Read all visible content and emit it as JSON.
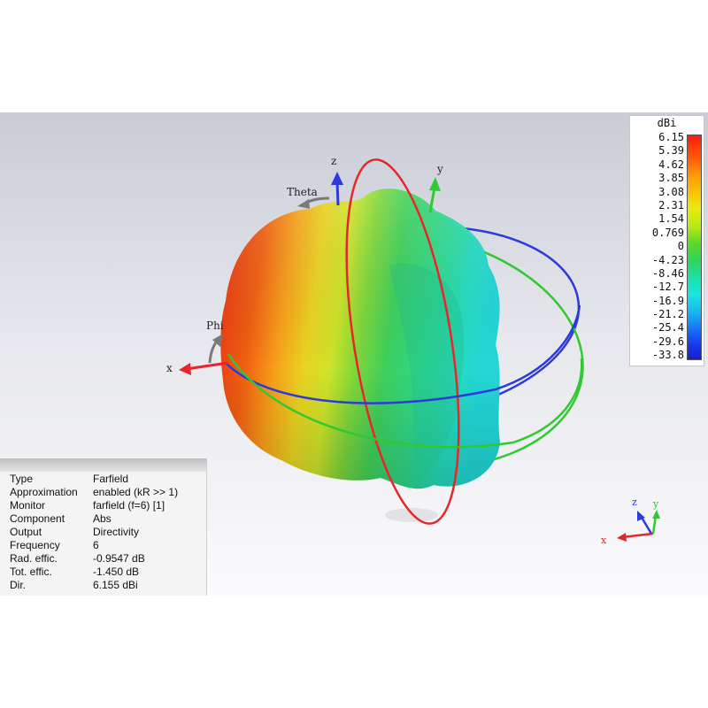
{
  "legend": {
    "unit": "dBi",
    "ticks": [
      "6.15",
      "5.39",
      "4.62",
      "3.85",
      "3.08",
      "2.31",
      "1.54",
      "0.769",
      "0",
      "-4.23",
      "-8.46",
      "-12.7",
      "-16.9",
      "-21.2",
      "-25.4",
      "-29.6",
      "-33.8"
    ]
  },
  "axes": {
    "x": "x",
    "y": "y",
    "z": "z",
    "theta": "Theta",
    "phi": "Phi"
  },
  "mini_axes": {
    "x": "x",
    "y": "y",
    "z": "z"
  },
  "info": {
    "rows": [
      {
        "key": "Type",
        "value": "Farfield"
      },
      {
        "key": "Approximation",
        "value": "enabled (kR >> 1)"
      },
      {
        "key": "Monitor",
        "value": "farfield (f=6) [1]"
      },
      {
        "key": "Component",
        "value": "Abs"
      },
      {
        "key": "Output",
        "value": "Directivity"
      },
      {
        "key": "Frequency",
        "value": "6"
      },
      {
        "key": "Rad. effic.",
        "value": "-0.9547 dB"
      },
      {
        "key": "Tot. effic.",
        "value": "-1.450 dB"
      },
      {
        "key": "Dir.",
        "value": "6.155 dBi"
      }
    ]
  },
  "colors": {
    "x_axis": "#e8262a",
    "y_axis": "#32c832",
    "z_axis": "#2c3bd9",
    "arrow_gray": "#7a7a7a"
  }
}
